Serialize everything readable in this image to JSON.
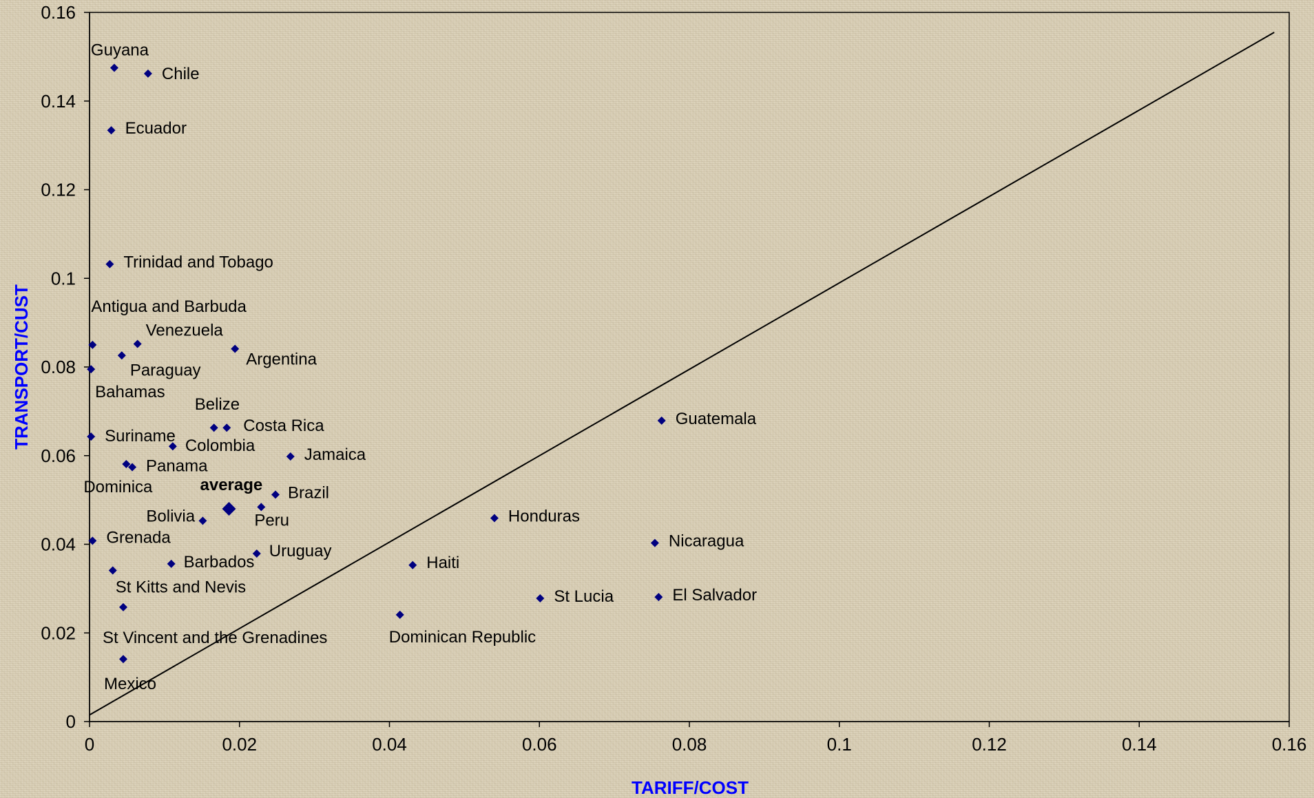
{
  "chart_data": {
    "type": "scatter",
    "xlabel": "TARIFF/COST",
    "ylabel": "TRANSPORT/CUST",
    "xlim": [
      0,
      0.16
    ],
    "ylim": [
      0,
      0.16
    ],
    "xticks": [
      "0",
      "0.02",
      "0.04",
      "0.06",
      "0.08",
      "0.1",
      "0.12",
      "0.14",
      "0.16"
    ],
    "yticks": [
      "0",
      "0.02",
      "0.04",
      "0.06",
      "0.08",
      "0.1",
      "0.12",
      "0.14",
      "0.16"
    ],
    "grid": false,
    "marker_color": "#000080",
    "highlight_color": "#ff0000",
    "reference_line": {
      "x": [
        0,
        0.158
      ],
      "y": [
        0.0015,
        0.1555
      ]
    },
    "points": [
      {
        "name": "Guyana",
        "x": 0.0033,
        "y": 0.1475
      },
      {
        "name": "Chile",
        "x": 0.0078,
        "y": 0.1462
      },
      {
        "name": "Ecuador",
        "x": 0.0029,
        "y": 0.1334
      },
      {
        "name": "Trinidad and Tobago",
        "x": 0.0027,
        "y": 0.1032
      },
      {
        "name": "Antigua and Barbuda",
        "x": 0.0004,
        "y": 0.085
      },
      {
        "name": "Venezuela",
        "x": 0.0064,
        "y": 0.0852
      },
      {
        "name": "Argentina",
        "x": 0.0194,
        "y": 0.0841
      },
      {
        "name": "Paraguay",
        "x": 0.0043,
        "y": 0.0826
      },
      {
        "name": "Bahamas",
        "x": 0.0002,
        "y": 0.0795
      },
      {
        "name": "Belize",
        "x": 0.0166,
        "y": 0.0663
      },
      {
        "name": "Costa Rica",
        "x": 0.0183,
        "y": 0.0663
      },
      {
        "name": "Guatemala",
        "x": 0.0763,
        "y": 0.0679
      },
      {
        "name": "Suriname",
        "x": 0.0002,
        "y": 0.0643
      },
      {
        "name": "Colombia",
        "x": 0.0111,
        "y": 0.0621
      },
      {
        "name": "Jamaica",
        "x": 0.0268,
        "y": 0.0598
      },
      {
        "name": "Dominica",
        "x": 0.0049,
        "y": 0.0581
      },
      {
        "name": "Panama",
        "x": 0.0057,
        "y": 0.0574
      },
      {
        "name": "Brazil",
        "x": 0.0248,
        "y": 0.0512
      },
      {
        "name": "average",
        "x": 0.0186,
        "y": 0.048,
        "emphasis": "average"
      },
      {
        "name": "Peru",
        "x": 0.0229,
        "y": 0.0484
      },
      {
        "name": "Bolivia",
        "x": 0.0151,
        "y": 0.0453,
        "emphasis": "highlight"
      },
      {
        "name": "Honduras",
        "x": 0.054,
        "y": 0.0459
      },
      {
        "name": "Grenada",
        "x": 0.0004,
        "y": 0.0408
      },
      {
        "name": "Nicaragua",
        "x": 0.0754,
        "y": 0.0403
      },
      {
        "name": "Uruguay",
        "x": 0.0223,
        "y": 0.0379
      },
      {
        "name": "Barbados",
        "x": 0.0109,
        "y": 0.0356
      },
      {
        "name": "Haiti",
        "x": 0.0431,
        "y": 0.0353
      },
      {
        "name": "St Kitts and Nevis",
        "x": 0.0031,
        "y": 0.0341
      },
      {
        "name": "St Lucia",
        "x": 0.0601,
        "y": 0.0278
      },
      {
        "name": "El Salvador",
        "x": 0.0759,
        "y": 0.0281
      },
      {
        "name": "St Vincent and the Grenadines",
        "x": 0.0045,
        "y": 0.0258
      },
      {
        "name": "Dominican Republic",
        "x": 0.0414,
        "y": 0.0241
      },
      {
        "name": "Mexico",
        "x": 0.0045,
        "y": 0.0141
      }
    ]
  }
}
